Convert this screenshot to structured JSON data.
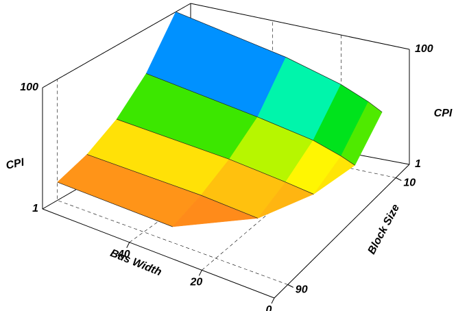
{
  "chart_data": {
    "type": "surface",
    "x_label": "Bus Width",
    "y_label": "Block Size",
    "z_labels": [
      "CPI",
      "CPI"
    ],
    "x": [
      4,
      8,
      16,
      32,
      64
    ],
    "y": [
      10,
      30,
      50,
      70,
      90
    ],
    "z": [
      [
        12,
        16,
        25,
        45,
        100
      ],
      [
        4,
        5,
        7,
        10,
        18
      ],
      [
        null,
        3,
        3.5,
        4.5,
        6
      ],
      [
        null,
        null,
        2.2,
        2.6,
        3
      ],
      [
        null,
        null,
        null,
        1.8,
        2
      ]
    ],
    "xlim": [
      0,
      64
    ],
    "xticks": [
      0,
      20,
      40
    ],
    "ylim": [
      100,
      0
    ],
    "yticks": [
      10,
      90
    ],
    "zlim": [
      1,
      100
    ],
    "zticks": [
      1,
      100
    ],
    "zscale": "log",
    "grid": true,
    "colormap": [
      "#ff0000",
      "#ff8a1a",
      "#ffff00",
      "#00e000",
      "#00ffff",
      "#0000ff",
      "#ff00ff"
    ]
  }
}
